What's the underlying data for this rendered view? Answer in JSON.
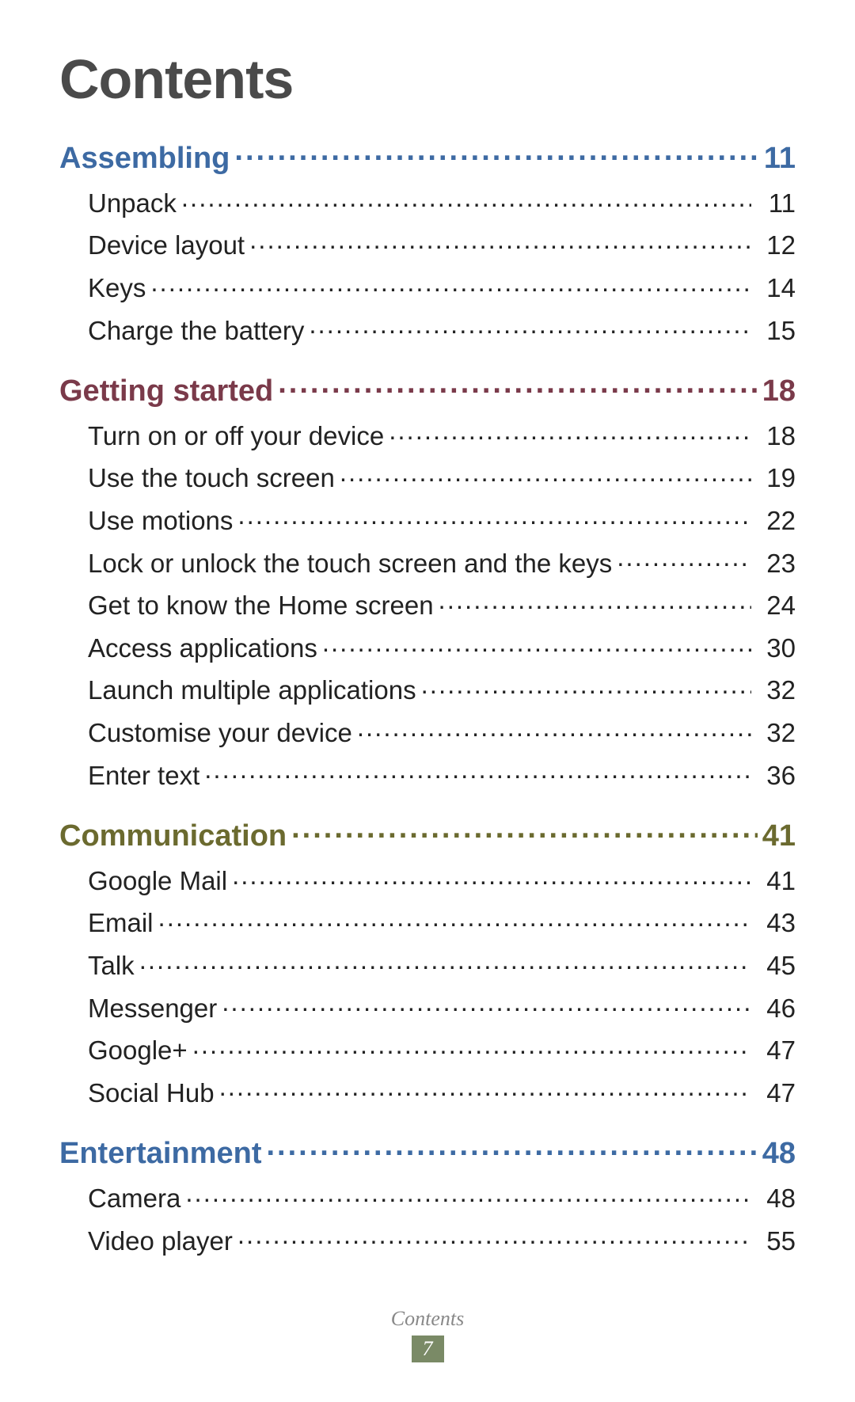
{
  "page_title": "Contents",
  "footer_label": "Contents",
  "footer_page": "7",
  "colors": {
    "title": "#4a4a4a",
    "text": "#222222",
    "footer_label": "#888888",
    "footer_badge_bg": "#7a8a66",
    "footer_badge_text": "#ffffff"
  },
  "typography": {
    "title_fontsize": 70,
    "section_fontsize": 38,
    "item_fontsize": 33,
    "footer_fontsize": 26
  },
  "sections": [
    {
      "title": "Assembling",
      "page": "11",
      "color": "#3d6aa3",
      "items": [
        {
          "label": "Unpack",
          "page": "11"
        },
        {
          "label": "Device layout",
          "page": "12"
        },
        {
          "label": "Keys",
          "page": "14"
        },
        {
          "label": "Charge the battery",
          "page": "15"
        }
      ]
    },
    {
      "title": "Getting started",
      "page": "18",
      "color": "#7a3a4a",
      "items": [
        {
          "label": "Turn on or off your device",
          "page": "18"
        },
        {
          "label": "Use the touch screen",
          "page": "19"
        },
        {
          "label": "Use motions",
          "page": "22"
        },
        {
          "label": "Lock or unlock the touch screen and the keys",
          "page": "23"
        },
        {
          "label": "Get to know the Home screen",
          "page": "24"
        },
        {
          "label": "Access applications",
          "page": "30"
        },
        {
          "label": "Launch multiple applications",
          "page": "32"
        },
        {
          "label": "Customise your device",
          "page": "32"
        },
        {
          "label": "Enter text",
          "page": "36"
        }
      ]
    },
    {
      "title": "Communication",
      "page": "41",
      "color": "#6b6a2f",
      "items": [
        {
          "label": "Google Mail",
          "page": "41"
        },
        {
          "label": "Email",
          "page": "43"
        },
        {
          "label": "Talk",
          "page": "45"
        },
        {
          "label": "Messenger",
          "page": "46"
        },
        {
          "label": "Google+",
          "page": "47"
        },
        {
          "label": "Social Hub",
          "page": "47"
        }
      ]
    },
    {
      "title": "Entertainment",
      "page": "48",
      "color": "#3d6aa3",
      "items": [
        {
          "label": "Camera",
          "page": "48"
        },
        {
          "label": "Video player",
          "page": "55"
        }
      ]
    }
  ]
}
